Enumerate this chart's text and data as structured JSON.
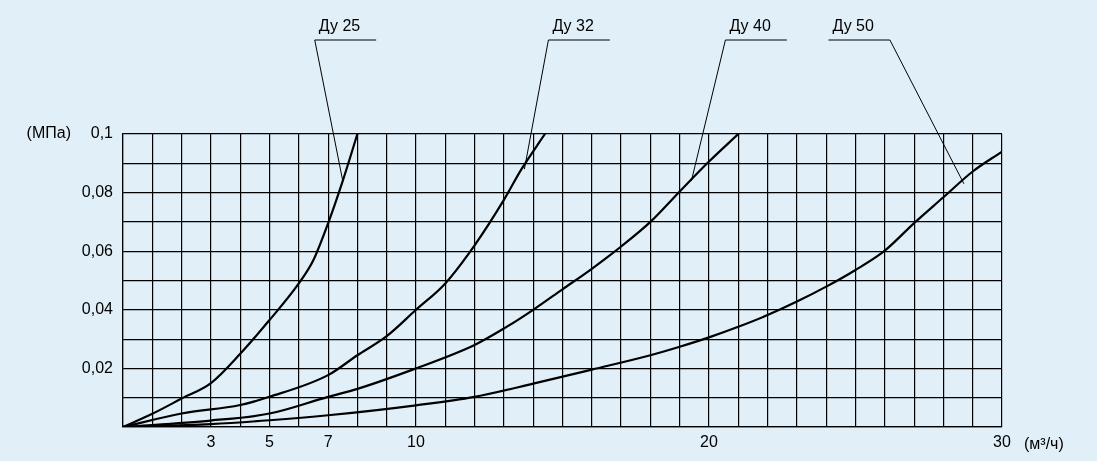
{
  "chart_data": {
    "type": "line",
    "ylabel": "(МПа)",
    "xlabel": "(м³/ч)",
    "xlim": [
      0,
      30
    ],
    "ylim": [
      0,
      0.1
    ],
    "xticks": [
      {
        "value": 0,
        "label": null
      },
      {
        "value": 1,
        "label": null
      },
      {
        "value": 2,
        "label": null
      },
      3,
      {
        "value": 4,
        "label": null
      },
      5,
      {
        "value": 6,
        "label": null
      },
      7,
      {
        "value": 8,
        "label": null
      },
      {
        "value": 9,
        "label": null
      },
      10,
      {
        "value": 11,
        "label": null
      },
      {
        "value": 12,
        "label": null
      },
      {
        "value": 13,
        "label": null
      },
      {
        "value": 14,
        "label": null
      },
      {
        "value": 15,
        "label": null
      },
      {
        "value": 16,
        "label": null
      },
      {
        "value": 17,
        "label": null
      },
      {
        "value": 18,
        "label": null
      },
      {
        "value": 19,
        "label": null
      },
      20,
      {
        "value": 21,
        "label": null
      },
      {
        "value": 22,
        "label": null
      },
      {
        "value": 23,
        "label": null
      },
      {
        "value": 24,
        "label": null
      },
      {
        "value": 25,
        "label": null
      },
      {
        "value": 26,
        "label": null
      },
      {
        "value": 27,
        "label": null
      },
      {
        "value": 28,
        "label": null
      },
      {
        "value": 29,
        "label": null
      },
      30
    ],
    "yticks": [
      {
        "value": 0,
        "label": null
      },
      {
        "value": 0.01,
        "label": null
      },
      {
        "value": 0.02,
        "label": "0,02"
      },
      {
        "value": 0.03,
        "label": null
      },
      {
        "value": 0.04,
        "label": "0,04"
      },
      {
        "value": 0.05,
        "label": null
      },
      {
        "value": 0.06,
        "label": "0,06"
      },
      {
        "value": 0.07,
        "label": null
      },
      {
        "value": 0.08,
        "label": "0,08"
      },
      {
        "value": 0.09,
        "label": null
      },
      {
        "value": 0.1,
        "label": "0,1"
      }
    ],
    "grid": true,
    "legend": false,
    "marker": "none",
    "line_style": "solid",
    "series": [
      {
        "color": "#000000",
        "x": [
          0,
          1,
          2,
          3,
          4,
          5,
          6,
          6.5,
          7,
          7.5,
          8
        ],
        "values": [
          0,
          0.0045,
          0.0097,
          0.015,
          0.025,
          0.0365,
          0.049,
          0.057,
          0.0695,
          0.084,
          0.1
        ]
      },
      {
        "color": "#000000",
        "x": [
          0,
          2,
          4,
          5,
          7,
          8,
          9,
          10,
          11,
          12,
          13,
          13.6,
          14.4
        ],
        "values": [
          0,
          0.0046,
          0.0075,
          0.0103,
          0.0177,
          0.0245,
          0.031,
          0.04,
          0.049,
          0.062,
          0.0775,
          0.088,
          0.1
        ]
      },
      {
        "color": "#000000",
        "x": [
          0,
          3,
          5,
          7,
          8,
          10,
          12,
          13,
          14,
          15,
          16,
          17,
          18,
          19,
          20,
          21
        ],
        "values": [
          0,
          0.0022,
          0.0046,
          0.0103,
          0.013,
          0.02,
          0.028,
          0.0336,
          0.04,
          0.047,
          0.054,
          0.0616,
          0.07,
          0.0804,
          0.0906,
          0.1
        ]
      },
      {
        "color": "#000000",
        "x": [
          0,
          3,
          5,
          7,
          10,
          12,
          14,
          16,
          18,
          19,
          20,
          21,
          22,
          23,
          24,
          25,
          26,
          27,
          28,
          29,
          30
        ],
        "values": [
          0,
          0.001,
          0.0023,
          0.004,
          0.0074,
          0.0103,
          0.0148,
          0.0196,
          0.0245,
          0.0274,
          0.0306,
          0.0342,
          0.0382,
          0.0428,
          0.0479,
          0.0536,
          0.0602,
          0.0696,
          0.0784,
          0.0872,
          0.094
        ]
      }
    ],
    "annotations": [
      {
        "text": "Ду 25",
        "x": 7.5,
        "y": 0.084
      },
      {
        "text": "Ду 32",
        "x": 13.7,
        "y": 0.088
      },
      {
        "text": "Ду 40",
        "x": 19.4,
        "y": 0.084
      },
      {
        "text": "Ду 50",
        "x": 28.7,
        "y": 0.083
      }
    ]
  }
}
